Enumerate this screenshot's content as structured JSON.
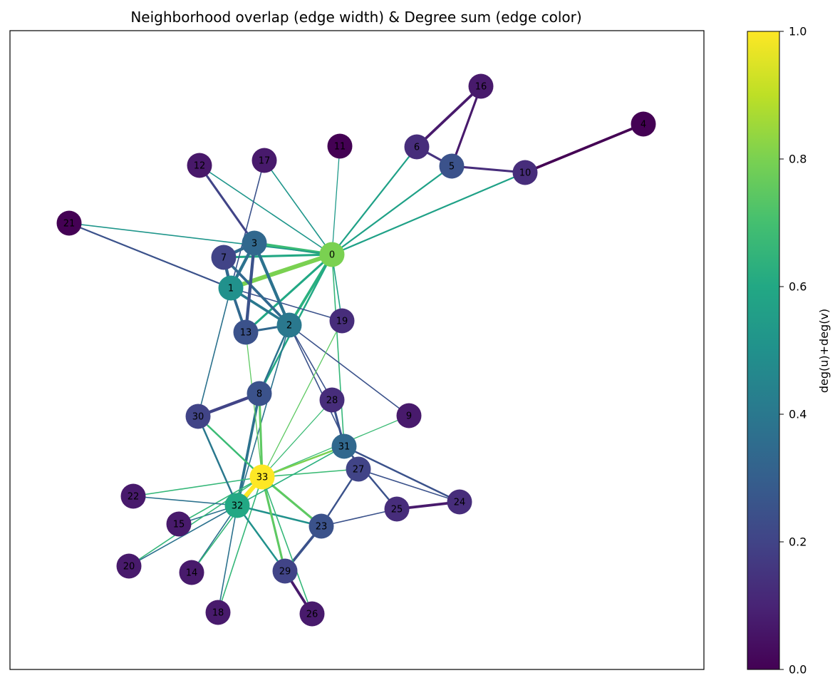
{
  "figure": {
    "title": "Neighborhood overlap (edge width) & Degree sum (edge color)"
  },
  "colorbar": {
    "label": "deg(u)+deg(v)",
    "colormap": "viridis",
    "range": [
      0,
      1
    ],
    "ticks": [
      "0.0",
      "0.2",
      "0.4",
      "0.6",
      "0.8",
      "1.0"
    ]
  },
  "graph": {
    "nodes": [
      {
        "id": "0",
        "color": "#7ad151"
      },
      {
        "id": "1",
        "color": "#21918c"
      },
      {
        "id": "2",
        "color": "#2a788e"
      },
      {
        "id": "3",
        "color": "#31688e"
      },
      {
        "id": "4",
        "color": "#440154"
      },
      {
        "id": "5",
        "color": "#3b528b"
      },
      {
        "id": "6",
        "color": "#472d7b"
      },
      {
        "id": "7",
        "color": "#414487"
      },
      {
        "id": "8",
        "color": "#3b528b"
      },
      {
        "id": "9",
        "color": "#481a6c"
      },
      {
        "id": "10",
        "color": "#472d7b"
      },
      {
        "id": "11",
        "color": "#440154"
      },
      {
        "id": "12",
        "color": "#48186a"
      },
      {
        "id": "13",
        "color": "#3b528b"
      },
      {
        "id": "14",
        "color": "#481a6c"
      },
      {
        "id": "15",
        "color": "#481a6c"
      },
      {
        "id": "16",
        "color": "#481a6c"
      },
      {
        "id": "17",
        "color": "#481a6c"
      },
      {
        "id": "18",
        "color": "#481a6c"
      },
      {
        "id": "19",
        "color": "#472d7b"
      },
      {
        "id": "20",
        "color": "#481a6c"
      },
      {
        "id": "21",
        "color": "#440154"
      },
      {
        "id": "22",
        "color": "#481a6c"
      },
      {
        "id": "23",
        "color": "#3b528b"
      },
      {
        "id": "24",
        "color": "#472d7b"
      },
      {
        "id": "25",
        "color": "#472d7b"
      },
      {
        "id": "26",
        "color": "#481a6c"
      },
      {
        "id": "27",
        "color": "#414487"
      },
      {
        "id": "28",
        "color": "#472d7b"
      },
      {
        "id": "29",
        "color": "#414487"
      },
      {
        "id": "30",
        "color": "#414487"
      },
      {
        "id": "31",
        "color": "#31688e"
      },
      {
        "id": "32",
        "color": "#22a884"
      },
      {
        "id": "33",
        "color": "#fde725"
      }
    ],
    "edges": [
      {
        "u": "0",
        "v": "1",
        "color": "#7ad151",
        "overlap": 0.8
      },
      {
        "u": "0",
        "v": "2",
        "color": "#2ab07f",
        "overlap": 0.4
      },
      {
        "u": "0",
        "v": "3",
        "color": "#3bbb75",
        "overlap": 0.5
      },
      {
        "u": "0",
        "v": "5",
        "color": "#1fa187",
        "overlap": 0.15
      },
      {
        "u": "0",
        "v": "6",
        "color": "#1fa187",
        "overlap": 0.15
      },
      {
        "u": "0",
        "v": "7",
        "color": "#22a884",
        "overlap": 0.3
      },
      {
        "u": "0",
        "v": "8",
        "color": "#22a884",
        "overlap": 0.2
      },
      {
        "u": "0",
        "v": "10",
        "color": "#1fa187",
        "overlap": 0.15
      },
      {
        "u": "0",
        "v": "11",
        "color": "#1f9a8a",
        "overlap": 0.0
      },
      {
        "u": "0",
        "v": "12",
        "color": "#1f968b",
        "overlap": 0.05
      },
      {
        "u": "0",
        "v": "13",
        "color": "#22a884",
        "overlap": 0.3
      },
      {
        "u": "0",
        "v": "17",
        "color": "#1f968b",
        "overlap": 0.05
      },
      {
        "u": "0",
        "v": "19",
        "color": "#20a386",
        "overlap": 0.05
      },
      {
        "u": "0",
        "v": "21",
        "color": "#1f968b",
        "overlap": 0.05
      },
      {
        "u": "0",
        "v": "31",
        "color": "#35b779",
        "overlap": 0.05
      },
      {
        "u": "1",
        "v": "2",
        "color": "#2a788e",
        "overlap": 0.4
      },
      {
        "u": "1",
        "v": "3",
        "color": "#2c728e",
        "overlap": 0.5
      },
      {
        "u": "1",
        "v": "7",
        "color": "#31688e",
        "overlap": 0.5
      },
      {
        "u": "1",
        "v": "13",
        "color": "#31688e",
        "overlap": 0.4
      },
      {
        "u": "1",
        "v": "17",
        "color": "#3b528b",
        "overlap": 0.05
      },
      {
        "u": "1",
        "v": "19",
        "color": "#3b528b",
        "overlap": 0.05
      },
      {
        "u": "1",
        "v": "21",
        "color": "#3b528b",
        "overlap": 0.15
      },
      {
        "u": "1",
        "v": "30",
        "color": "#2c728e",
        "overlap": 0.05
      },
      {
        "u": "2",
        "v": "3",
        "color": "#2c728e",
        "overlap": 0.5
      },
      {
        "u": "2",
        "v": "7",
        "color": "#31688e",
        "overlap": 0.4
      },
      {
        "u": "2",
        "v": "8",
        "color": "#2c728e",
        "overlap": 0.2
      },
      {
        "u": "2",
        "v": "9",
        "color": "#3b528b",
        "overlap": 0.05
      },
      {
        "u": "2",
        "v": "13",
        "color": "#31688e",
        "overlap": 0.3
      },
      {
        "u": "2",
        "v": "27",
        "color": "#3b528b",
        "overlap": 0.05
      },
      {
        "u": "2",
        "v": "28",
        "color": "#3b528b",
        "overlap": 0.05
      },
      {
        "u": "2",
        "v": "32",
        "color": "#2c728e",
        "overlap": 0.05
      },
      {
        "u": "3",
        "v": "7",
        "color": "#31688e",
        "overlap": 0.5
      },
      {
        "u": "3",
        "v": "12",
        "color": "#414487",
        "overlap": 0.3
      },
      {
        "u": "3",
        "v": "13",
        "color": "#3b528b",
        "overlap": 0.5
      },
      {
        "u": "4",
        "v": "10",
        "color": "#440154",
        "overlap": 0.4
      },
      {
        "u": "5",
        "v": "6",
        "color": "#46337f",
        "overlap": 0.3
      },
      {
        "u": "5",
        "v": "10",
        "color": "#472d7b",
        "overlap": 0.3
      },
      {
        "u": "5",
        "v": "16",
        "color": "#481a6c",
        "overlap": 0.3
      },
      {
        "u": "6",
        "v": "16",
        "color": "#481a6c",
        "overlap": 0.4
      },
      {
        "u": "8",
        "v": "30",
        "color": "#414487",
        "overlap": 0.5
      },
      {
        "u": "8",
        "v": "32",
        "color": "#2c728e",
        "overlap": 0.4
      },
      {
        "u": "8",
        "v": "33",
        "color": "#5ec962",
        "overlap": 0.3
      },
      {
        "u": "9",
        "v": "33",
        "color": "#3bbb75",
        "overlap": 0.0
      },
      {
        "u": "13",
        "v": "33",
        "color": "#5ec962",
        "overlap": 0.0
      },
      {
        "u": "14",
        "v": "32",
        "color": "#2c728e",
        "overlap": 0.05
      },
      {
        "u": "14",
        "v": "33",
        "color": "#35b779",
        "overlap": 0.05
      },
      {
        "u": "15",
        "v": "32",
        "color": "#2c728e",
        "overlap": 0.05
      },
      {
        "u": "15",
        "v": "33",
        "color": "#35b779",
        "overlap": 0.05
      },
      {
        "u": "18",
        "v": "32",
        "color": "#2c728e",
        "overlap": 0.05
      },
      {
        "u": "18",
        "v": "33",
        "color": "#35b779",
        "overlap": 0.05
      },
      {
        "u": "19",
        "v": "33",
        "color": "#5ec962",
        "overlap": 0.0
      },
      {
        "u": "20",
        "v": "32",
        "color": "#2c728e",
        "overlap": 0.05
      },
      {
        "u": "20",
        "v": "33",
        "color": "#35b779",
        "overlap": 0.05
      },
      {
        "u": "22",
        "v": "32",
        "color": "#2c728e",
        "overlap": 0.05
      },
      {
        "u": "22",
        "v": "33",
        "color": "#35b779",
        "overlap": 0.05
      },
      {
        "u": "23",
        "v": "25",
        "color": "#3b528b",
        "overlap": 0.05
      },
      {
        "u": "23",
        "v": "27",
        "color": "#3b528b",
        "overlap": 0.2
      },
      {
        "u": "23",
        "v": "29",
        "color": "#3b528b",
        "overlap": 0.4
      },
      {
        "u": "23",
        "v": "32",
        "color": "#21918c",
        "overlap": 0.2
      },
      {
        "u": "23",
        "v": "33",
        "color": "#5ec962",
        "overlap": 0.3
      },
      {
        "u": "24",
        "v": "25",
        "color": "#481a6c",
        "overlap": 0.4
      },
      {
        "u": "24",
        "v": "27",
        "color": "#3b528b",
        "overlap": 0.05
      },
      {
        "u": "24",
        "v": "31",
        "color": "#3b528b",
        "overlap": 0.2
      },
      {
        "u": "25",
        "v": "31",
        "color": "#3b528b",
        "overlap": 0.2
      },
      {
        "u": "26",
        "v": "29",
        "color": "#481a6c",
        "overlap": 0.4
      },
      {
        "u": "26",
        "v": "33",
        "color": "#35b779",
        "overlap": 0.05
      },
      {
        "u": "27",
        "v": "33",
        "color": "#3bbb75",
        "overlap": 0.05
      },
      {
        "u": "28",
        "v": "31",
        "color": "#3b528b",
        "overlap": 0.3
      },
      {
        "u": "28",
        "v": "33",
        "color": "#3bbb75",
        "overlap": 0.0
      },
      {
        "u": "29",
        "v": "32",
        "color": "#21918c",
        "overlap": 0.2
      },
      {
        "u": "29",
        "v": "33",
        "color": "#5ec962",
        "overlap": 0.3
      },
      {
        "u": "30",
        "v": "32",
        "color": "#2a788e",
        "overlap": 0.2
      },
      {
        "u": "30",
        "v": "33",
        "color": "#3bbb75",
        "overlap": 0.2
      },
      {
        "u": "31",
        "v": "32",
        "color": "#2ab07f",
        "overlap": 0.05
      },
      {
        "u": "31",
        "v": "33",
        "color": "#7ad151",
        "overlap": 0.2
      },
      {
        "u": "32",
        "v": "33",
        "color": "#fde725",
        "overlap": 0.8
      }
    ]
  }
}
